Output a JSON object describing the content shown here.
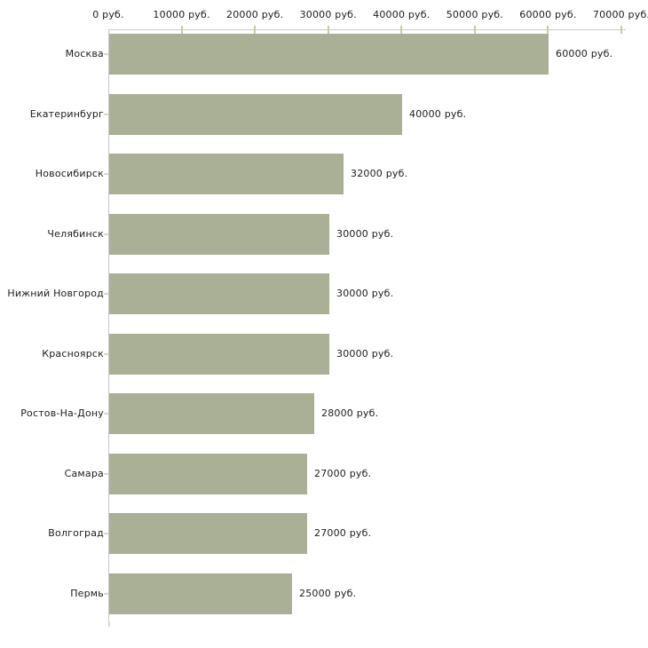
{
  "chart_data": {
    "type": "bar",
    "orientation": "horizontal",
    "title": "",
    "xlabel": "",
    "ylabel": "",
    "unit": "руб.",
    "xlim": [
      0,
      70000
    ],
    "grid": false,
    "legend": "none",
    "x_ticks": [
      0,
      10000,
      20000,
      30000,
      40000,
      50000,
      60000,
      70000
    ],
    "x_tick_labels": [
      "0 руб.",
      "10000 руб.",
      "20000 руб.",
      "30000 руб.",
      "40000 руб.",
      "50000 руб.",
      "60000 руб.",
      "70000 руб."
    ],
    "categories": [
      "Москва",
      "Екатеринбург",
      "Новосибирск",
      "Челябинск",
      "Нижний Новгород",
      "Красноярск",
      "Ростов-На-Дону",
      "Самара",
      "Волгоград",
      "Пермь"
    ],
    "values": [
      60000,
      40000,
      32000,
      30000,
      30000,
      30000,
      28000,
      27000,
      27000,
      25000
    ],
    "value_labels": [
      "60000 руб.",
      "40000 руб.",
      "32000 руб.",
      "30000 руб.",
      "30000 руб.",
      "30000 руб.",
      "28000 руб.",
      "27000 руб.",
      "27000 руб.",
      "25000 руб."
    ],
    "colors": {
      "bar": "#aab096",
      "axis": "#c9c9c9",
      "x_tick": "#c8ca9e",
      "category_tick": "#ddd8c2",
      "text": "#1c1c1c",
      "background": "#ffffff"
    }
  }
}
